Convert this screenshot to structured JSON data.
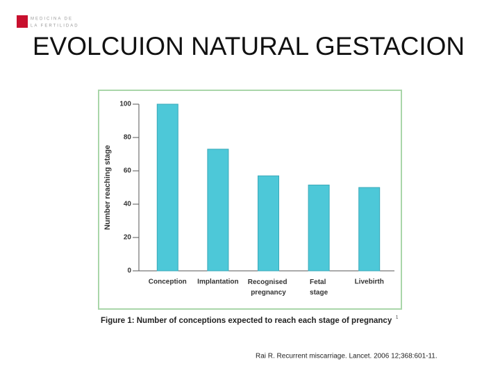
{
  "logo": {
    "line1": "MEDICINA DE",
    "line2": "LA FERTILIDAD"
  },
  "slide_title": "EVOLCUION NATURAL GESTACION",
  "chart_data": {
    "type": "bar",
    "y_label": "Number reaching stage",
    "categories": [
      "Conception",
      "Implantation",
      "Recognised pregnancy",
      "Fetal stage",
      "Livebirth"
    ],
    "values": [
      100,
      73,
      57,
      51.5,
      50
    ],
    "color": "#4dc8d8",
    "ylim": [
      0,
      100
    ],
    "yticks": [
      0,
      20,
      40,
      60,
      80,
      100
    ],
    "grid": false,
    "caption": "Figure 1: Number of conceptions expected to reach each stage of pregnancy",
    "caption_sup": "1"
  },
  "citation": "Rai R. Recurrent miscarriage. Lancet. 2006 12;368:601-11."
}
